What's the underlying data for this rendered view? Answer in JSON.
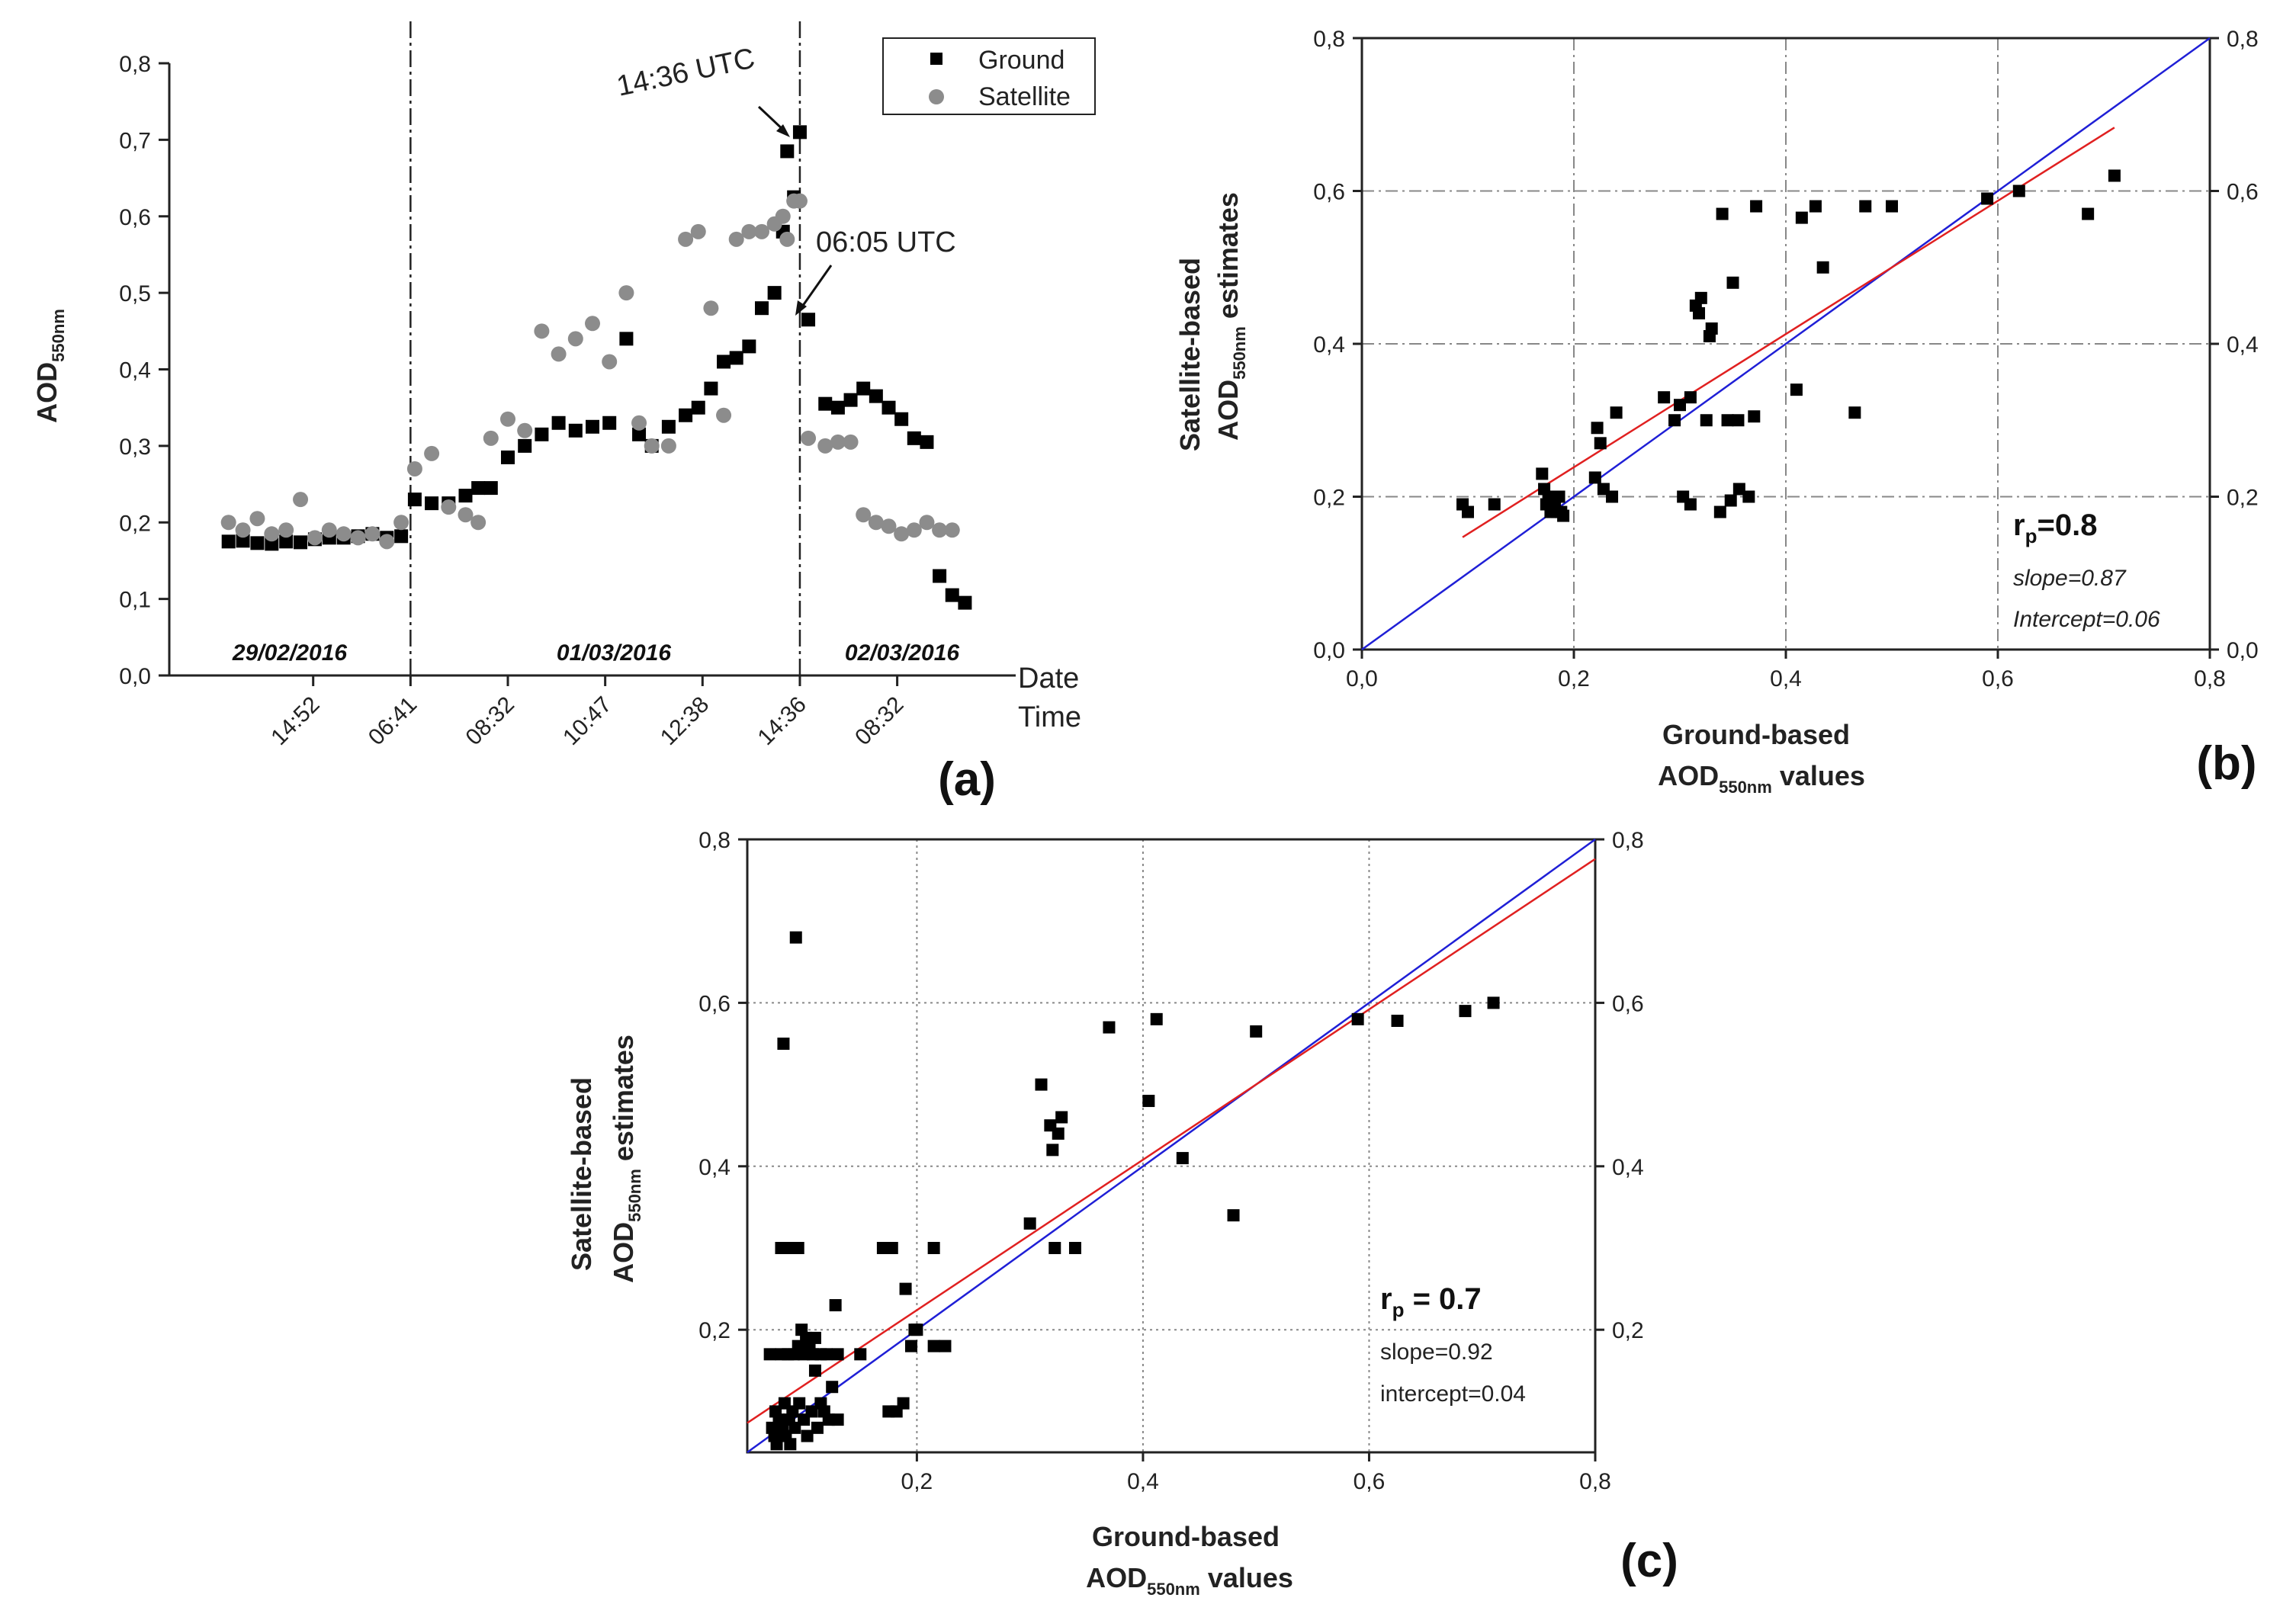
{
  "colors": {
    "ground": "#000000",
    "satellite": "#8c8c8c",
    "one_to_one": "#1f1fd6",
    "fit": "#e02020",
    "grid": "#888888"
  },
  "panel_a": {
    "label": "(a)",
    "ylabel_main": "AOD",
    "ylabel_sub": "550nm",
    "xlabel_date": "Date",
    "xlabel_time": "Time",
    "annotation_1": "14:36 UTC",
    "annotation_2": "06:05 UTC",
    "legend": {
      "ground": "Ground",
      "satellite": "Satellite"
    },
    "dates": [
      "29/02/2016",
      "01/03/2016",
      "02/03/2016"
    ]
  },
  "panel_b": {
    "label": "(b)",
    "ylabel_line1": "Satellite-based",
    "ylabel_line2_main": "AOD",
    "ylabel_line2_sub": "550nm",
    "ylabel_line2_end": " estimates",
    "xlabel_line1": "Ground-based",
    "xlabel_line2_main": "AOD",
    "xlabel_line2_sub": "550nm",
    "xlabel_line2_end": " values",
    "r_main": "r",
    "r_sub": "p",
    "r_value": "=0.8",
    "slope": "slope=0.87",
    "intercept": "Intercept=0.06"
  },
  "panel_c": {
    "label": "(c)",
    "ylabel_line1": "Satellite-based",
    "ylabel_line2_main": "AOD",
    "ylabel_line2_sub": "550nm",
    "ylabel_line2_end": " estimates",
    "xlabel_line1": "Ground-based",
    "xlabel_line2_main": "AOD",
    "xlabel_line2_sub": "550nm",
    "xlabel_line2_end": " values",
    "r_main": "r",
    "r_sub": "p",
    "r_value": " = 0.7",
    "slope": "slope=0.92",
    "intercept": "intercept=0.04"
  },
  "chart_data": [
    {
      "id": "a",
      "type": "scatter",
      "title": "",
      "ylabel": "AOD550nm",
      "xlabel": "Date / Time",
      "ylim": [
        0,
        0.8
      ],
      "yticks": [
        "0,0",
        "0,1",
        "0,2",
        "0,3",
        "0,4",
        "0,5",
        "0,6",
        "0,7",
        "0,8"
      ],
      "xlim": [
        0,
        100
      ],
      "xtick_positions": [
        17,
        28.5,
        40,
        51.5,
        63,
        74.5,
        86
      ],
      "xtick_labels": [
        "14:52",
        "06:41",
        "08:32",
        "10:47",
        "12:38",
        "14:36",
        "08:32"
      ],
      "day_separators": [
        28.5,
        74.5
      ],
      "x_index": [
        7.0,
        8.7,
        10.4,
        12.1,
        13.8,
        15.5,
        17.2,
        18.9,
        20.6,
        22.3,
        24.0,
        25.7,
        27.4,
        29.0,
        31.0,
        33.0,
        35.0,
        36.5,
        38.0,
        40.0,
        42.0,
        44.0,
        46.0,
        48.0,
        50.0,
        52.0,
        54.0,
        55.5,
        57.0,
        59.0,
        61.0,
        62.5,
        64.0,
        65.5,
        67.0,
        68.5,
        70.0,
        71.5,
        72.5,
        73.8,
        75.5,
        77.5,
        79.0,
        80.5,
        82.0,
        83.5,
        85.0,
        86.5,
        88.0,
        89.5,
        91.0,
        92.5
      ],
      "series": [
        {
          "name": "Ground",
          "marker": "square",
          "values": [
            0.175,
            0.176,
            0.173,
            0.172,
            0.175,
            0.174,
            0.178,
            0.18,
            0.18,
            0.182,
            0.185,
            0.18,
            0.182,
            0.23,
            0.225,
            0.225,
            0.235,
            0.245,
            0.245,
            0.285,
            0.3,
            0.315,
            0.33,
            0.32,
            0.325,
            0.33,
            0.44,
            0.315,
            0.3,
            0.325,
            0.34,
            0.35,
            0.375,
            0.41,
            0.415,
            0.43,
            0.48,
            0.5,
            0.58,
            0.625,
            0.465,
            0.355,
            0.35,
            0.36,
            0.375,
            0.365,
            0.35,
            0.335,
            0.31,
            0.305,
            0.13,
            0.105
          ]
        },
        {
          "name": "Satellite",
          "marker": "circle",
          "values": [
            0.2,
            0.19,
            0.205,
            0.185,
            0.19,
            0.23,
            0.18,
            0.19,
            0.185,
            0.18,
            0.185,
            0.175,
            0.2,
            0.27,
            0.29,
            0.22,
            0.21,
            0.2,
            0.31,
            0.335,
            0.32,
            0.45,
            0.42,
            0.44,
            0.46,
            0.41,
            0.5,
            0.33,
            0.3,
            0.3,
            0.57,
            0.58,
            0.48,
            0.34,
            0.57,
            0.58,
            0.58,
            0.59,
            0.6,
            0.62,
            0.31,
            0.3,
            0.305,
            0.305,
            0.21,
            0.2,
            0.195,
            0.185,
            0.19,
            0.2,
            0.19,
            0.19
          ]
        }
      ],
      "extra_points": [
        {
          "name": "Ground",
          "x": 73.0,
          "y": 0.685
        },
        {
          "name": "Ground",
          "x": 74.5,
          "y": 0.71
        },
        {
          "name": "Satellite",
          "x": 73.0,
          "y": 0.57
        },
        {
          "name": "Satellite",
          "x": 74.5,
          "y": 0.62
        },
        {
          "name": "Ground",
          "x": 94.0,
          "y": 0.095
        }
      ]
    },
    {
      "id": "b",
      "type": "scatter",
      "title": "",
      "xlabel": "Ground-based AOD550nm values",
      "ylabel": "Satellite-based AOD550nm estimates",
      "xlim": [
        0,
        0.8
      ],
      "ylim": [
        0,
        0.8
      ],
      "ticks": [
        0,
        0.2,
        0.4,
        0.6,
        0.8
      ],
      "tick_labels": [
        "0,0",
        "0,2",
        "0,4",
        "0,6",
        "0,8"
      ],
      "points": [
        [
          0.095,
          0.19
        ],
        [
          0.1,
          0.18
        ],
        [
          0.125,
          0.19
        ],
        [
          0.17,
          0.23
        ],
        [
          0.172,
          0.21
        ],
        [
          0.174,
          0.19
        ],
        [
          0.176,
          0.2
        ],
        [
          0.178,
          0.18
        ],
        [
          0.18,
          0.2
        ],
        [
          0.182,
          0.19
        ],
        [
          0.184,
          0.18
        ],
        [
          0.186,
          0.2
        ],
        [
          0.188,
          0.18
        ],
        [
          0.19,
          0.175
        ],
        [
          0.22,
          0.225
        ],
        [
          0.222,
          0.29
        ],
        [
          0.225,
          0.27
        ],
        [
          0.228,
          0.21
        ],
        [
          0.236,
          0.2
        ],
        [
          0.24,
          0.31
        ],
        [
          0.285,
          0.33
        ],
        [
          0.295,
          0.3
        ],
        [
          0.3,
          0.32
        ],
        [
          0.303,
          0.2
        ],
        [
          0.31,
          0.19
        ],
        [
          0.31,
          0.33
        ],
        [
          0.315,
          0.45
        ],
        [
          0.318,
          0.44
        ],
        [
          0.32,
          0.46
        ],
        [
          0.325,
          0.3
        ],
        [
          0.328,
          0.41
        ],
        [
          0.33,
          0.42
        ],
        [
          0.338,
          0.18
        ],
        [
          0.34,
          0.57
        ],
        [
          0.345,
          0.3
        ],
        [
          0.348,
          0.195
        ],
        [
          0.35,
          0.48
        ],
        [
          0.355,
          0.3
        ],
        [
          0.356,
          0.21
        ],
        [
          0.365,
          0.2
        ],
        [
          0.37,
          0.305
        ],
        [
          0.372,
          0.58
        ],
        [
          0.41,
          0.34
        ],
        [
          0.415,
          0.565
        ],
        [
          0.428,
          0.58
        ],
        [
          0.435,
          0.5
        ],
        [
          0.465,
          0.31
        ],
        [
          0.475,
          0.58
        ],
        [
          0.5,
          0.58
        ],
        [
          0.59,
          0.59
        ],
        [
          0.62,
          0.6
        ],
        [
          0.685,
          0.57
        ],
        [
          0.71,
          0.62
        ]
      ],
      "lines": {
        "one_to_one": {
          "from": [
            0,
            0
          ],
          "to": [
            0.8,
            0.8
          ]
        },
        "fit": {
          "from": [
            0.095,
            0.147
          ],
          "to": [
            0.71,
            0.683
          ],
          "slope": 0.87,
          "intercept": 0.06
        }
      },
      "stats": {
        "r_p": 0.8,
        "slope": 0.87,
        "intercept": 0.06
      }
    },
    {
      "id": "c",
      "type": "scatter",
      "title": "",
      "xlabel": "Ground-based AOD550nm values",
      "ylabel": "Satellite-based AOD550nm estimates",
      "xlim": [
        0.05,
        0.8
      ],
      "ylim": [
        0.05,
        0.8
      ],
      "ticks": [
        0.2,
        0.4,
        0.6,
        0.8
      ],
      "tick_labels": [
        "0,2",
        "0,4",
        "0,6",
        "0,8"
      ],
      "points": [
        [
          0.07,
          0.17
        ],
        [
          0.072,
          0.08
        ],
        [
          0.074,
          0.07
        ],
        [
          0.075,
          0.1
        ],
        [
          0.076,
          0.06
        ],
        [
          0.078,
          0.09
        ],
        [
          0.08,
          0.3
        ],
        [
          0.08,
          0.17
        ],
        [
          0.081,
          0.08
        ],
        [
          0.082,
          0.55
        ],
        [
          0.083,
          0.11
        ],
        [
          0.084,
          0.07
        ],
        [
          0.085,
          0.3
        ],
        [
          0.086,
          0.17
        ],
        [
          0.087,
          0.09
        ],
        [
          0.088,
          0.06
        ],
        [
          0.09,
          0.3
        ],
        [
          0.09,
          0.1
        ],
        [
          0.091,
          0.17
        ],
        [
          0.092,
          0.08
        ],
        [
          0.093,
          0.68
        ],
        [
          0.095,
          0.3
        ],
        [
          0.095,
          0.18
        ],
        [
          0.096,
          0.11
        ],
        [
          0.098,
          0.2
        ],
        [
          0.1,
          0.17
        ],
        [
          0.1,
          0.09
        ],
        [
          0.102,
          0.19
        ],
        [
          0.103,
          0.07
        ],
        [
          0.105,
          0.18
        ],
        [
          0.107,
          0.1
        ],
        [
          0.108,
          0.17
        ],
        [
          0.11,
          0.15
        ],
        [
          0.11,
          0.19
        ],
        [
          0.112,
          0.08
        ],
        [
          0.115,
          0.17
        ],
        [
          0.115,
          0.11
        ],
        [
          0.118,
          0.1
        ],
        [
          0.12,
          0.17
        ],
        [
          0.122,
          0.09
        ],
        [
          0.125,
          0.13
        ],
        [
          0.128,
          0.23
        ],
        [
          0.13,
          0.17
        ],
        [
          0.13,
          0.09
        ],
        [
          0.15,
          0.17
        ],
        [
          0.17,
          0.3
        ],
        [
          0.175,
          0.1
        ],
        [
          0.178,
          0.3
        ],
        [
          0.182,
          0.1
        ],
        [
          0.188,
          0.11
        ],
        [
          0.19,
          0.25
        ],
        [
          0.195,
          0.18
        ],
        [
          0.198,
          0.2
        ],
        [
          0.2,
          0.2
        ],
        [
          0.215,
          0.3
        ],
        [
          0.215,
          0.18
        ],
        [
          0.225,
          0.18
        ],
        [
          0.3,
          0.33
        ],
        [
          0.31,
          0.5
        ],
        [
          0.318,
          0.45
        ],
        [
          0.32,
          0.42
        ],
        [
          0.322,
          0.3
        ],
        [
          0.325,
          0.44
        ],
        [
          0.328,
          0.46
        ],
        [
          0.34,
          0.3
        ],
        [
          0.37,
          0.57
        ],
        [
          0.405,
          0.48
        ],
        [
          0.412,
          0.58
        ],
        [
          0.435,
          0.41
        ],
        [
          0.48,
          0.34
        ],
        [
          0.5,
          0.565
        ],
        [
          0.59,
          0.58
        ],
        [
          0.625,
          0.578
        ],
        [
          0.685,
          0.59
        ],
        [
          0.71,
          0.6
        ]
      ],
      "lines": {
        "one_to_one": {
          "from": [
            0.05,
            0.05
          ],
          "to": [
            0.8,
            0.8
          ]
        },
        "fit": {
          "from": [
            0.05,
            0.086
          ],
          "to": [
            0.8,
            0.776
          ],
          "slope": 0.92,
          "intercept": 0.04
        }
      },
      "stats": {
        "r_p": 0.7,
        "slope": 0.92,
        "intercept": 0.04
      }
    }
  ]
}
